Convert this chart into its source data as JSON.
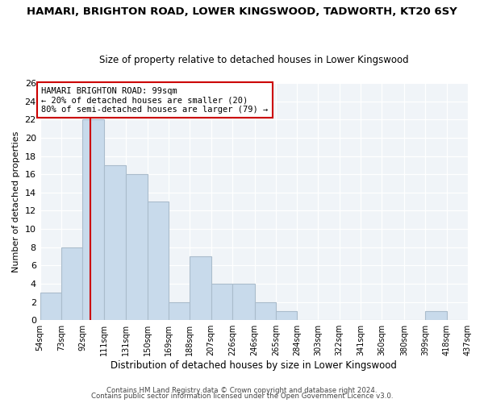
{
  "title": "HAMARI, BRIGHTON ROAD, LOWER KINGSWOOD, TADWORTH, KT20 6SY",
  "subtitle": "Size of property relative to detached houses in Lower Kingswood",
  "xlabel": "Distribution of detached houses by size in Lower Kingswood",
  "ylabel": "Number of detached properties",
  "bar_color": "#c8daeb",
  "bar_edgecolor": "#aabccc",
  "vline_x": 99,
  "vline_color": "#cc0000",
  "bin_edges": [
    54,
    73,
    92,
    111,
    131,
    150,
    169,
    188,
    207,
    226,
    246,
    265,
    284,
    303,
    322,
    341,
    360,
    380,
    399,
    418,
    437
  ],
  "bin_labels": [
    "54sqm",
    "73sqm",
    "92sqm",
    "111sqm",
    "131sqm",
    "150sqm",
    "169sqm",
    "188sqm",
    "207sqm",
    "226sqm",
    "246sqm",
    "265sqm",
    "284sqm",
    "303sqm",
    "322sqm",
    "341sqm",
    "360sqm",
    "380sqm",
    "399sqm",
    "418sqm",
    "437sqm"
  ],
  "bar_heights": [
    3,
    8,
    22,
    17,
    16,
    13,
    2,
    7,
    4,
    4,
    2,
    1,
    0,
    0,
    0,
    0,
    0,
    0,
    1,
    0
  ],
  "annotation_text": "HAMARI BRIGHTON ROAD: 99sqm\n← 20% of detached houses are smaller (20)\n80% of semi-detached houses are larger (79) →",
  "annotation_box_color": "white",
  "annotation_box_edgecolor": "#cc0000",
  "ylim": [
    0,
    26
  ],
  "yticks": [
    0,
    2,
    4,
    6,
    8,
    10,
    12,
    14,
    16,
    18,
    20,
    22,
    24,
    26
  ],
  "footer1": "Contains HM Land Registry data © Crown copyright and database right 2024.",
  "footer2": "Contains public sector information licensed under the Open Government Licence v3.0.",
  "bg_color": "#f0f4f8"
}
